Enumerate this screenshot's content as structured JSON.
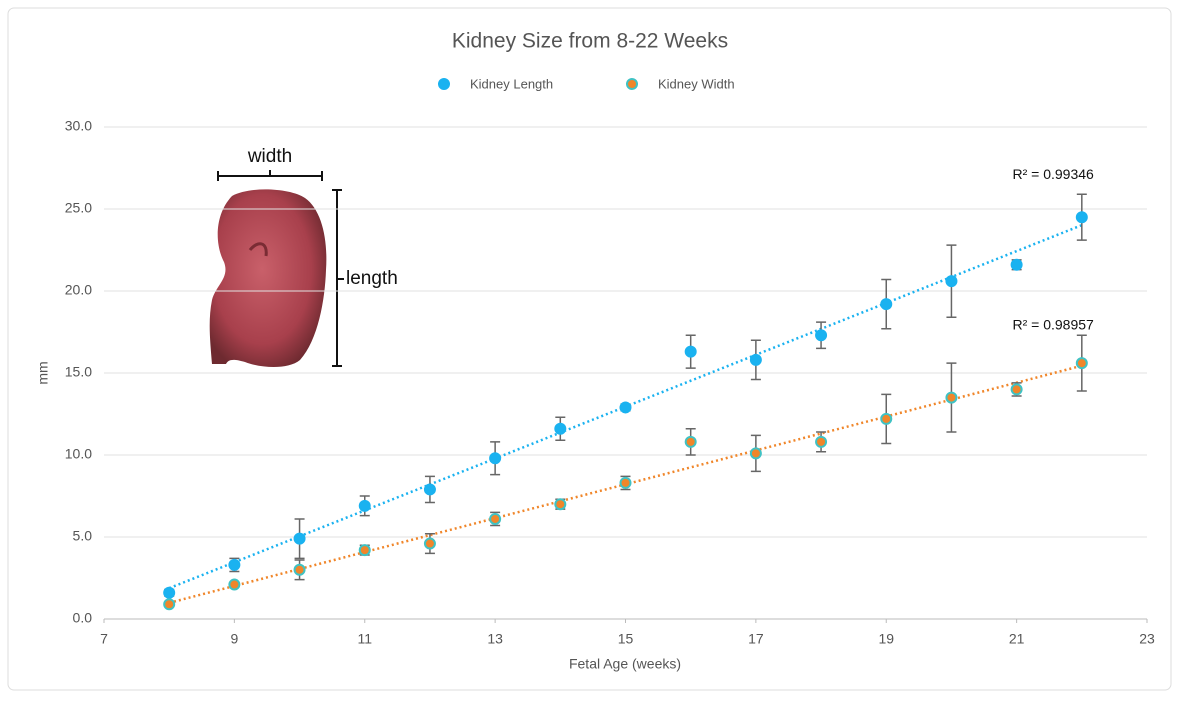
{
  "chart_data": {
    "type": "scatter",
    "title": "Kidney Size from 8-22 Weeks",
    "xlabel": "Fetal Age (weeks)",
    "ylabel": "mm",
    "x": [
      8,
      9,
      10,
      11,
      12,
      13,
      14,
      15,
      16,
      17,
      18,
      19,
      20,
      21,
      22
    ],
    "series": [
      {
        "name": "Kidney Length",
        "color": "#1ab2f0",
        "edgecolor": "#1ab2f0",
        "trendline_color": "#1ab2f0",
        "trendline_label": "R² = 0.99346",
        "values": [
          1.6,
          3.3,
          4.9,
          6.9,
          7.9,
          9.8,
          11.6,
          12.9,
          16.3,
          15.8,
          17.3,
          19.2,
          20.6,
          21.6,
          24.5
        ],
        "errors": [
          0.2,
          0.4,
          1.2,
          0.6,
          0.8,
          1.0,
          0.7,
          0.2,
          1.0,
          1.2,
          0.8,
          1.5,
          2.2,
          0.3,
          1.4
        ]
      },
      {
        "name": "Kidney Width",
        "color": "#f0862a",
        "edgecolor": "#3fc2c4",
        "trendline_color": "#f0862a",
        "trendline_label": "R² = 0.98957",
        "values": [
          0.9,
          2.1,
          3.0,
          4.2,
          4.6,
          6.1,
          7.0,
          8.3,
          10.8,
          10.1,
          10.8,
          12.2,
          13.5,
          14.0,
          15.6
        ],
        "errors": [
          0.1,
          0.1,
          0.6,
          0.3,
          0.6,
          0.4,
          0.3,
          0.4,
          0.8,
          1.1,
          0.6,
          1.5,
          2.1,
          0.4,
          1.7
        ]
      }
    ],
    "xlim": [
      7,
      23
    ],
    "xticks": [
      7,
      9,
      11,
      13,
      15,
      17,
      19,
      21,
      23
    ],
    "ylim": [
      0,
      30
    ],
    "yticks": [
      {
        "value": 0,
        "label": "0.0"
      },
      {
        "value": 5,
        "label": "5.0"
      },
      {
        "value": 10,
        "label": "10.0"
      },
      {
        "value": 15,
        "label": "15.0"
      },
      {
        "value": 20,
        "label": "20.0"
      },
      {
        "value": 25,
        "label": "25.0"
      },
      {
        "value": 30,
        "label": "30.0"
      }
    ],
    "grid": true,
    "annotations": [
      "width",
      "length"
    ]
  }
}
